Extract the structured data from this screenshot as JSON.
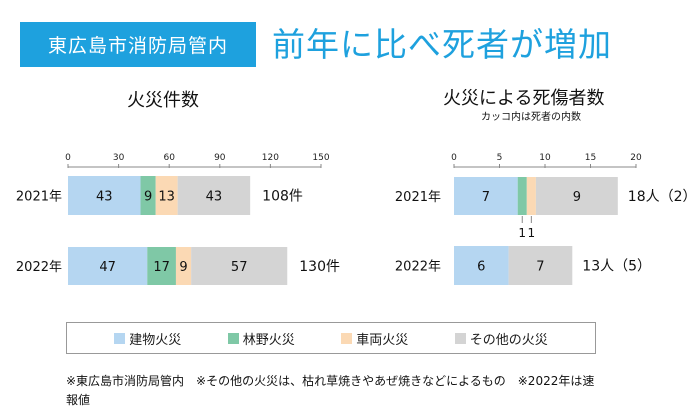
{
  "badge": "東広島市消防局管内",
  "headline": "前年に比べ死者が増加",
  "colors": {
    "accent": "#1ea1de",
    "建物火災": "#b5d6f1",
    "林野火災": "#7fc8a6",
    "車両火災": "#fbd9b4",
    "その他の火災": "#d4d4d4"
  },
  "legend": [
    "建物火災",
    "林野火災",
    "車両火災",
    "その他の火災"
  ],
  "notes": "※東広島市消防局管内　※その他の火災は、枯れ草焼きやあぜ焼きなどによるもの　※2022年は速報値",
  "chart_data": [
    {
      "type": "bar",
      "orientation": "horizontal",
      "stacked": true,
      "title": "火災件数",
      "categories": [
        "2021年",
        "2022年"
      ],
      "series": [
        {
          "name": "建物火災",
          "values": [
            43,
            47
          ]
        },
        {
          "name": "林野火災",
          "values": [
            9,
            17
          ]
        },
        {
          "name": "車両火災",
          "values": [
            13,
            9
          ]
        },
        {
          "name": "その他の火災",
          "values": [
            43,
            57
          ]
        }
      ],
      "totals": [
        "108件",
        "130件"
      ],
      "xlim": [
        0,
        150
      ],
      "xticks": [
        0,
        30,
        60,
        90,
        120,
        150
      ],
      "xlabel": "",
      "ylabel": ""
    },
    {
      "type": "bar",
      "orientation": "horizontal",
      "stacked": true,
      "title": "火災による死傷者数",
      "subtitle": "カッコ内は死者の内数",
      "categories": [
        "2021年",
        "2022年"
      ],
      "series": [
        {
          "name": "建物火災",
          "values": [
            7,
            6
          ]
        },
        {
          "name": "林野火災",
          "values": [
            1,
            0
          ]
        },
        {
          "name": "車両火災",
          "values": [
            1,
            0
          ]
        },
        {
          "name": "その他の火災",
          "values": [
            9,
            7
          ]
        }
      ],
      "totals": [
        "18人（2）",
        "13人（5）"
      ],
      "xlim": [
        0,
        20
      ],
      "xticks": [
        0,
        5,
        10,
        15,
        20
      ],
      "xlabel": "",
      "ylabel": ""
    }
  ]
}
